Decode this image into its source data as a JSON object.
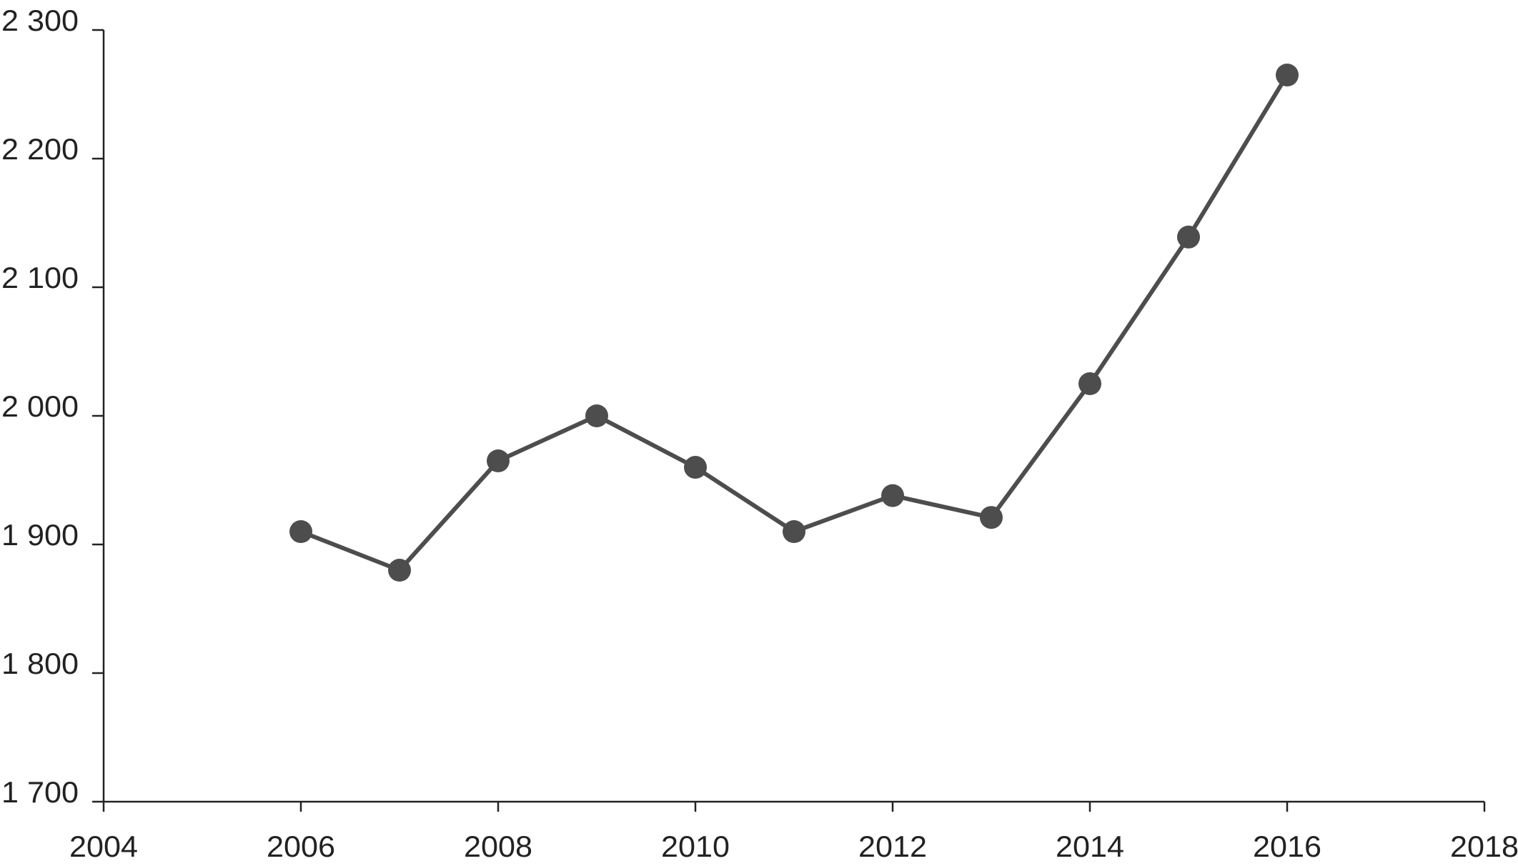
{
  "chart_data": {
    "type": "line",
    "x": [
      2006,
      2007,
      2008,
      2009,
      2010,
      2011,
      2012,
      2013,
      2014,
      2015,
      2016
    ],
    "values": [
      1910,
      1880,
      1965,
      2000,
      1960,
      1910,
      1938,
      1921,
      2025,
      2139,
      2265
    ],
    "color": "#4d4d4d",
    "xlim": [
      2004,
      2018
    ],
    "xticks": [
      2004,
      2006,
      2008,
      2010,
      2012,
      2014,
      2016,
      2018
    ],
    "ylim": [
      1700,
      2300
    ],
    "yticks": [
      {
        "value": 1700,
        "label": "1 700"
      },
      {
        "value": 1800,
        "label": "1 800"
      },
      {
        "value": 1900,
        "label": "1 900"
      },
      {
        "value": 2000,
        "label": "2 000"
      },
      {
        "value": 2100,
        "label": "2 100"
      },
      {
        "value": 2200,
        "label": "2 200"
      },
      {
        "value": 2300,
        "label": "2 300"
      }
    ],
    "grid": false
  }
}
